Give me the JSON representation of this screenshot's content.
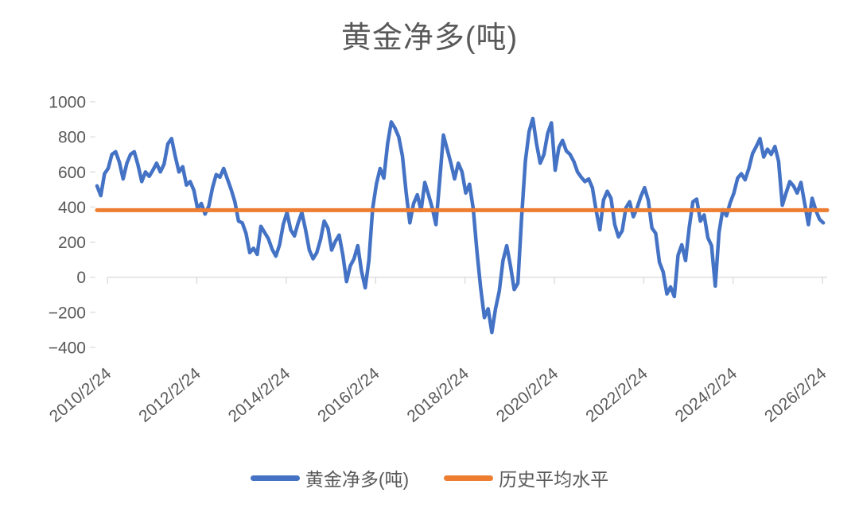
{
  "chart_data": {
    "type": "line",
    "title": "黄金净多(吨)",
    "title_color": "#595959",
    "background": "#FFFFFF",
    "x_axis": {
      "tick_labels": [
        "2010/2/24",
        "2012/2/24",
        "2014/2/24",
        "2016/2/24",
        "2018/2/24",
        "2020/2/24",
        "2022/2/24",
        "2024/2/24",
        "2026/2/24"
      ],
      "tick_positions": [
        2010.15,
        2012.15,
        2014.15,
        2016.15,
        2018.15,
        2020.15,
        2022.15,
        2024.15,
        2026.15
      ],
      "range": [
        2009.9167,
        2026.2
      ],
      "label_rotation_deg": -40,
      "axis_color": "#D9D9D9",
      "tick_color": "#D9D9D9",
      "label_color": "#595959"
    },
    "y_axis": {
      "tick_labels": [
        "1000",
        "800",
        "600",
        "400",
        "200",
        "0",
        "−200",
        "−400"
      ],
      "tick_values": [
        1000,
        800,
        600,
        400,
        200,
        0,
        -200,
        -400
      ],
      "range": [
        -400,
        1000
      ],
      "gridlines": false,
      "tick_color": "#D9D9D9",
      "label_color": "#595959"
    },
    "series": [
      {
        "name": "黄金净多(吨)",
        "kind": "line",
        "color": "#4472C4",
        "stroke_width": 4.5,
        "unit": "吨",
        "x_start": 2009.9167,
        "x_step_years": 0.0833333,
        "sampling": "monthly-estimate",
        "values": [
          520,
          465,
          590,
          620,
          700,
          715,
          655,
          560,
          650,
          700,
          715,
          640,
          545,
          600,
          575,
          610,
          650,
          600,
          645,
          760,
          790,
          690,
          600,
          630,
          525,
          545,
          495,
          390,
          420,
          360,
          405,
          510,
          585,
          570,
          620,
          560,
          500,
          430,
          320,
          310,
          250,
          140,
          165,
          130,
          290,
          255,
          220,
          160,
          120,
          185,
          300,
          370,
          270,
          235,
          310,
          370,
          270,
          155,
          105,
          140,
          215,
          320,
          280,
          155,
          205,
          240,
          125,
          -25,
          65,
          105,
          180,
          35,
          -60,
          95,
          390,
          530,
          620,
          565,
          760,
          885,
          850,
          800,
          690,
          480,
          310,
          420,
          470,
          380,
          540,
          470,
          395,
          300,
          550,
          810,
          730,
          650,
          560,
          650,
          600,
          480,
          530,
          390,
          150,
          -60,
          -230,
          -180,
          -315,
          -180,
          -80,
          95,
          180,
          65,
          -70,
          -35,
          340,
          660,
          830,
          905,
          760,
          650,
          700,
          820,
          880,
          610,
          740,
          780,
          720,
          700,
          660,
          600,
          570,
          545,
          560,
          510,
          380,
          270,
          440,
          490,
          450,
          300,
          230,
          265,
          395,
          430,
          345,
          395,
          460,
          510,
          440,
          280,
          250,
          85,
          30,
          -95,
          -55,
          -110,
          125,
          185,
          95,
          285,
          430,
          445,
          320,
          355,
          225,
          180,
          -50,
          255,
          385,
          350,
          425,
          480,
          565,
          590,
          555,
          620,
          705,
          745,
          790,
          685,
          730,
          700,
          745,
          660,
          410,
          480,
          545,
          520,
          480,
          540,
          420,
          300,
          450,
          380,
          330,
          310
        ]
      },
      {
        "name": "历史平均水平",
        "kind": "hline",
        "color": "#ED7D31",
        "stroke_width": 5,
        "value": 382
      }
    ],
    "legend": {
      "position": "bottom",
      "entries": [
        {
          "label": "黄金净多(吨)",
          "color": "#4472C4"
        },
        {
          "label": "历史平均水平",
          "color": "#ED7D31"
        }
      ]
    }
  }
}
